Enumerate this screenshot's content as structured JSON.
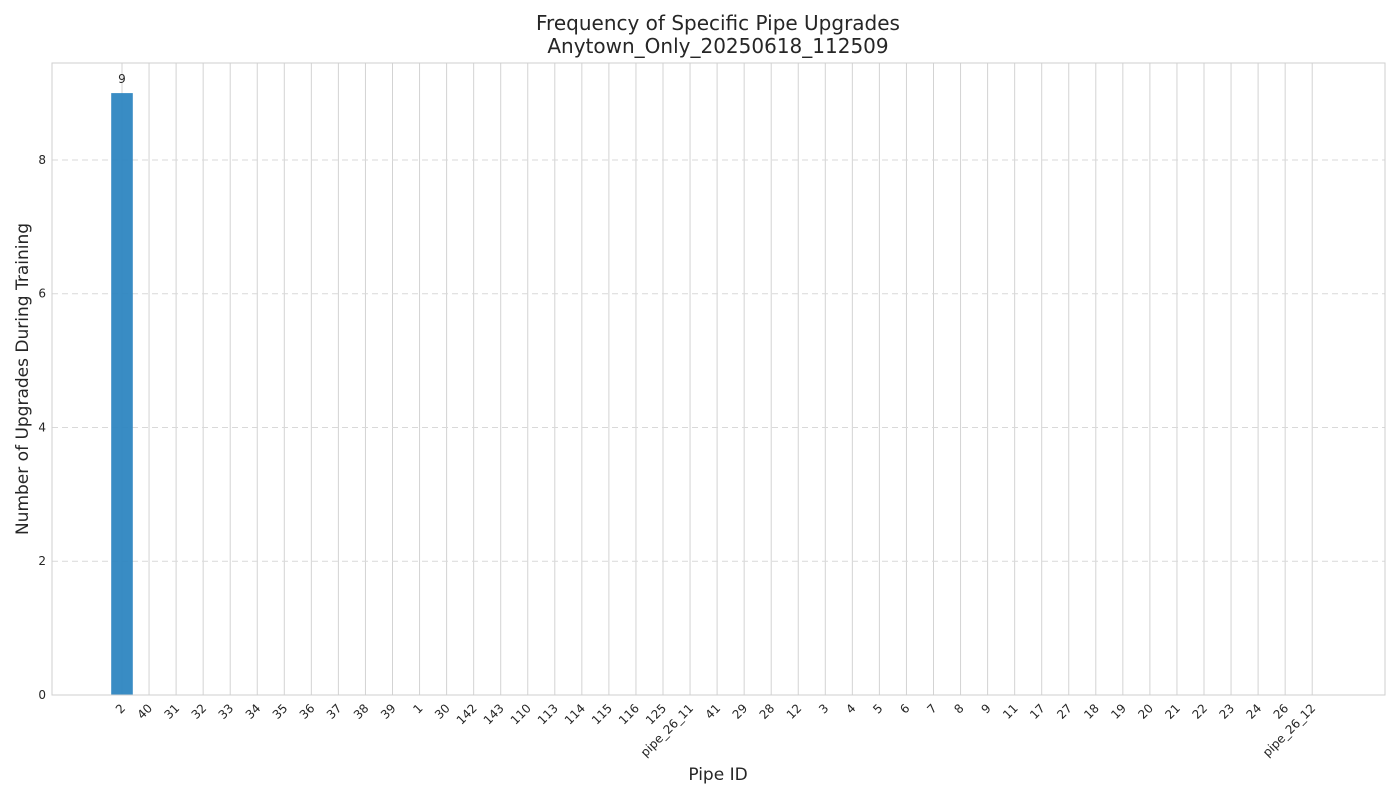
{
  "chart_data": {
    "type": "bar",
    "title": "Frequency of Specific Pipe Upgrades",
    "subtitle": "Anytown_Only_20250618_112509",
    "xlabel": "Pipe ID",
    "ylabel": "Number of Upgrades During Training",
    "categories": [
      "2",
      "40",
      "31",
      "32",
      "33",
      "34",
      "35",
      "36",
      "37",
      "38",
      "39",
      "1",
      "30",
      "142",
      "143",
      "110",
      "113",
      "114",
      "115",
      "116",
      "125",
      "pipe_26_11",
      "41",
      "29",
      "28",
      "12",
      "3",
      "4",
      "5",
      "6",
      "7",
      "8",
      "9",
      "11",
      "17",
      "27",
      "18",
      "19",
      "20",
      "21",
      "22",
      "23",
      "24",
      "26",
      "pipe_26_12"
    ],
    "values": [
      9,
      0,
      0,
      0,
      0,
      0,
      0,
      0,
      0,
      0,
      0,
      0,
      0,
      0,
      0,
      0,
      0,
      0,
      0,
      0,
      0,
      0,
      0,
      0,
      0,
      0,
      0,
      0,
      0,
      0,
      0,
      0,
      0,
      0,
      0,
      0,
      0,
      0,
      0,
      0,
      0,
      0,
      0,
      0,
      0
    ],
    "data_labels": [
      {
        "category": "2",
        "text": "9"
      }
    ],
    "yticks": [
      "0",
      "2",
      "4",
      "6",
      "8"
    ],
    "ylim": [
      0,
      9.45
    ],
    "bar_color": "#2e86c1",
    "grid": "vertical solid, horizontal dashed",
    "legend": "none"
  }
}
